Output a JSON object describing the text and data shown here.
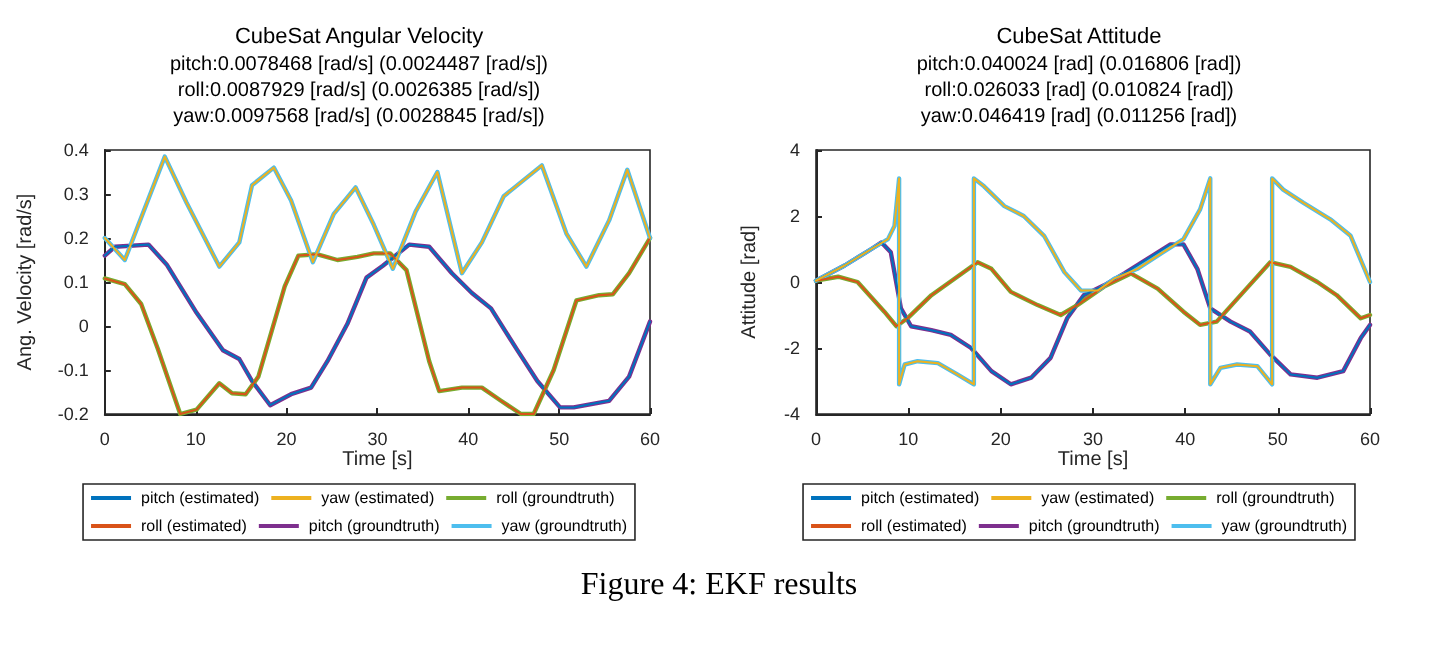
{
  "chart_data": [
    {
      "type": "line",
      "title": "CubeSat Angular Velocity",
      "subtitle": "pitch:0.0078468 [rad/s] (0.0024487 [rad/s])\nroll:0.0087929 [rad/s] (0.0026385 [rad/s])\nyaw:0.0097568 [rad/s] (0.0028845 [rad/s])",
      "xlabel": "Time [s]",
      "ylabel": "Ang. Velocity [rad/s]",
      "xlim": [
        0,
        60
      ],
      "ylim": [
        -0.2,
        0.4
      ],
      "xticks": [
        0,
        10,
        20,
        30,
        40,
        50,
        60
      ],
      "yticks": [
        -0.2,
        -0.1,
        0,
        0.1,
        0.2,
        0.3,
        0.4
      ],
      "legend": "bottom",
      "marker": "none",
      "annotations": [
        "Figure 4: EKF results"
      ],
      "series": [
        {
          "name": "pitch (estimated)",
          "color": "#0072bd",
          "x": [
            0,
            1.1,
            4.8,
            6.8,
            10.1,
            13,
            14.8,
            16.2,
            18.2,
            20.5,
            22.7,
            24.5,
            26.7,
            28.8,
            30.6,
            33.5,
            35.7,
            38.2,
            40.4,
            42.5,
            45.4,
            47.6,
            50.1,
            51.6,
            53.4,
            55.5,
            57.7,
            60
          ],
          "values": [
            0.16,
            0.18,
            0.185,
            0.14,
            0.03,
            -0.055,
            -0.075,
            -0.125,
            -0.18,
            -0.155,
            -0.14,
            -0.08,
            0.005,
            0.11,
            0.137,
            0.185,
            0.18,
            0.12,
            0.075,
            0.04,
            -0.055,
            -0.125,
            -0.185,
            -0.185,
            -0.178,
            -0.17,
            -0.115,
            0.01
          ]
        },
        {
          "name": "roll (estimated)",
          "color": "#d95319",
          "x": [
            0,
            2.2,
            4,
            5.8,
            8.3,
            10.1,
            12.6,
            14,
            15.5,
            16.9,
            19.8,
            21.3,
            23.4,
            25.6,
            27.8,
            29.6,
            31.4,
            33.2,
            35.7,
            36.8,
            39.3,
            41.5,
            43.6,
            45.8,
            47.2,
            49.4,
            51.9,
            54.4,
            55.9,
            57.7,
            60
          ],
          "values": [
            0.108,
            0.095,
            0.05,
            -0.05,
            -0.2,
            -0.19,
            -0.13,
            -0.153,
            -0.155,
            -0.115,
            0.09,
            0.16,
            0.163,
            0.15,
            0.157,
            0.165,
            0.165,
            0.127,
            -0.08,
            -0.148,
            -0.14,
            -0.14,
            -0.17,
            -0.2,
            -0.2,
            -0.1,
            0.058,
            0.07,
            0.072,
            0.12,
            0.2
          ]
        },
        {
          "name": "yaw (estimated)",
          "color": "#edb120",
          "x": [
            0,
            2.2,
            6.6,
            9,
            12.6,
            14.8,
            16.2,
            18.6,
            20.5,
            22.9,
            25.2,
            27.6,
            29.6,
            31.7,
            34.2,
            36.6,
            39.3,
            41.5,
            43.9,
            48.1,
            50.8,
            53,
            55.5,
            57.5,
            60
          ],
          "values": [
            0.2,
            0.15,
            0.385,
            0.28,
            0.135,
            0.19,
            0.32,
            0.36,
            0.285,
            0.145,
            0.255,
            0.315,
            0.23,
            0.13,
            0.26,
            0.35,
            0.12,
            0.19,
            0.295,
            0.365,
            0.21,
            0.135,
            0.24,
            0.355,
            0.2
          ]
        },
        {
          "name": "pitch (groundtruth)",
          "color": "#7e2f8e",
          "x": [
            0,
            1.1,
            4.8,
            6.8,
            10.1,
            13,
            14.8,
            16.2,
            18.2,
            20.5,
            22.7,
            24.5,
            26.7,
            28.8,
            30.6,
            33.5,
            35.7,
            38.2,
            40.4,
            42.5,
            45.4,
            47.6,
            50.1,
            51.6,
            53.4,
            55.5,
            57.7,
            60
          ],
          "values": [
            0.16,
            0.18,
            0.185,
            0.14,
            0.03,
            -0.055,
            -0.075,
            -0.125,
            -0.18,
            -0.155,
            -0.14,
            -0.08,
            0.005,
            0.11,
            0.137,
            0.185,
            0.18,
            0.12,
            0.075,
            0.04,
            -0.055,
            -0.125,
            -0.185,
            -0.185,
            -0.178,
            -0.17,
            -0.115,
            0.01
          ]
        },
        {
          "name": "roll (groundtruth)",
          "color": "#77ac30",
          "x": [
            0,
            2.2,
            4,
            5.8,
            8.3,
            10.1,
            12.6,
            14,
            15.5,
            16.9,
            19.8,
            21.3,
            23.4,
            25.6,
            27.8,
            29.6,
            31.4,
            33.2,
            35.7,
            36.8,
            39.3,
            41.5,
            43.6,
            45.8,
            47.2,
            49.4,
            51.9,
            54.4,
            55.9,
            57.7,
            60
          ],
          "values": [
            0.108,
            0.095,
            0.05,
            -0.05,
            -0.2,
            -0.19,
            -0.13,
            -0.153,
            -0.155,
            -0.115,
            0.09,
            0.16,
            0.163,
            0.15,
            0.157,
            0.165,
            0.165,
            0.127,
            -0.08,
            -0.148,
            -0.14,
            -0.14,
            -0.17,
            -0.2,
            -0.2,
            -0.1,
            0.058,
            0.07,
            0.072,
            0.12,
            0.2
          ]
        },
        {
          "name": "yaw (groundtruth)",
          "color": "#4dbeee",
          "x": [
            0,
            2.2,
            6.6,
            9,
            12.6,
            14.8,
            16.2,
            18.6,
            20.5,
            22.9,
            25.2,
            27.6,
            29.6,
            31.7,
            34.2,
            36.6,
            39.3,
            41.5,
            43.9,
            48.1,
            50.8,
            53,
            55.5,
            57.5,
            60
          ],
          "values": [
            0.2,
            0.15,
            0.385,
            0.28,
            0.135,
            0.19,
            0.32,
            0.36,
            0.285,
            0.145,
            0.255,
            0.315,
            0.23,
            0.13,
            0.26,
            0.35,
            0.12,
            0.19,
            0.295,
            0.365,
            0.21,
            0.135,
            0.24,
            0.355,
            0.2
          ]
        }
      ]
    },
    {
      "type": "line",
      "title": "CubeSat Attitude",
      "subtitle": "pitch:0.040024 [rad] (0.016806 [rad])\nroll:0.026033 [rad] (0.010824 [rad])\nyaw:0.046419 [rad] (0.011256 [rad])",
      "xlabel": "Time [s]",
      "ylabel": "Attitude [rad]",
      "xlim": [
        0,
        60
      ],
      "ylim": [
        -4,
        4
      ],
      "xticks": [
        0,
        10,
        20,
        30,
        40,
        50,
        60
      ],
      "yticks": [
        -4,
        -2,
        0,
        2,
        4
      ],
      "legend": "bottom",
      "marker": "none",
      "series": [
        {
          "name": "pitch (estimated)",
          "color": "#0072bd",
          "x": [
            0,
            3.1,
            6,
            7.1,
            8.1,
            9.2,
            10.3,
            12.5,
            14.6,
            16.8,
            19,
            21.1,
            23.3,
            25.4,
            27.2,
            29,
            31.2,
            33.4,
            35.9,
            38.4,
            39.8,
            41.3,
            42.7,
            44.9,
            47,
            49.2,
            51.4,
            54.3,
            57.1,
            59,
            60
          ],
          "values": [
            0.04,
            0.5,
            1,
            1.2,
            0.9,
            -0.8,
            -1.34,
            -1.46,
            -1.6,
            -2,
            -2.7,
            -3.1,
            -2.9,
            -2.3,
            -1.1,
            -0.4,
            -0.1,
            0.26,
            0.7,
            1.14,
            1.14,
            0.4,
            -0.8,
            -1.2,
            -1.5,
            -2.2,
            -2.8,
            -2.9,
            -2.7,
            -1.7,
            -1.3
          ]
        },
        {
          "name": "roll (estimated)",
          "color": "#d95319",
          "x": [
            0,
            2.4,
            4.5,
            7.4,
            8.7,
            9.9,
            12.5,
            15,
            17.5,
            19,
            21.1,
            24,
            26.5,
            28.3,
            31.2,
            34.1,
            37,
            39.8,
            41.6,
            43.4,
            46.3,
            49.2,
            51.4,
            54.3,
            56.4,
            59,
            60
          ],
          "values": [
            0.04,
            0.16,
            0,
            -0.9,
            -1.34,
            -1.1,
            -0.4,
            0.1,
            0.6,
            0.4,
            -0.3,
            -0.7,
            -1,
            -0.7,
            -0.14,
            0.26,
            -0.2,
            -0.9,
            -1.3,
            -1.2,
            -0.3,
            0.6,
            0.46,
            0,
            -0.4,
            -1.1,
            -1
          ]
        },
        {
          "name": "yaw (estimated)",
          "color": "#edb120",
          "x": [
            0,
            3.1,
            6,
            7.8,
            8.5,
            9,
            9,
            9.6,
            11,
            13.2,
            15.3,
            17.1,
            17.1,
            18.2,
            20.4,
            22.5,
            24.7,
            26.9,
            28.7,
            30.5,
            32.3,
            34.8,
            37,
            39.8,
            41.6,
            42.7,
            42.7,
            43.8,
            45.6,
            47.8,
            49.4,
            49.4,
            50.6,
            52.8,
            55.7,
            57.9,
            60
          ],
          "values": [
            0.04,
            0.5,
            1,
            1.3,
            1.7,
            3.14,
            -3.1,
            -2.5,
            -2.4,
            -2.46,
            -2.8,
            -3.1,
            3.14,
            2.9,
            2.3,
            2,
            1.4,
            0.3,
            -0.26,
            -0.26,
            0.1,
            0.4,
            0.8,
            1.3,
            2.2,
            3.14,
            -3.1,
            -2.6,
            -2.5,
            -2.55,
            -3.1,
            3.14,
            2.8,
            2.4,
            1.9,
            1.4,
            0
          ]
        },
        {
          "name": "pitch (groundtruth)",
          "color": "#7e2f8e",
          "x": [
            0,
            3.1,
            6,
            7.1,
            8.1,
            9.2,
            10.3,
            12.5,
            14.6,
            16.8,
            19,
            21.1,
            23.3,
            25.4,
            27.2,
            29,
            31.2,
            33.4,
            35.9,
            38.4,
            39.8,
            41.3,
            42.7,
            44.9,
            47,
            49.2,
            51.4,
            54.3,
            57.1,
            59,
            60
          ],
          "values": [
            0.04,
            0.5,
            1,
            1.2,
            0.9,
            -0.8,
            -1.34,
            -1.46,
            -1.6,
            -2,
            -2.7,
            -3.1,
            -2.9,
            -2.3,
            -1.1,
            -0.4,
            -0.1,
            0.26,
            0.7,
            1.14,
            1.14,
            0.4,
            -0.8,
            -1.2,
            -1.5,
            -2.2,
            -2.8,
            -2.9,
            -2.7,
            -1.7,
            -1.3
          ]
        },
        {
          "name": "roll (groundtruth)",
          "color": "#77ac30",
          "x": [
            0,
            2.4,
            4.5,
            7.4,
            8.7,
            9.9,
            12.5,
            15,
            17.5,
            19,
            21.1,
            24,
            26.5,
            28.3,
            31.2,
            34.1,
            37,
            39.8,
            41.6,
            43.4,
            46.3,
            49.2,
            51.4,
            54.3,
            56.4,
            59,
            60
          ],
          "values": [
            0.04,
            0.16,
            0,
            -0.9,
            -1.34,
            -1.1,
            -0.4,
            0.1,
            0.6,
            0.4,
            -0.3,
            -0.7,
            -1,
            -0.7,
            -0.14,
            0.26,
            -0.2,
            -0.9,
            -1.3,
            -1.2,
            -0.3,
            0.6,
            0.46,
            0,
            -0.4,
            -1.1,
            -1
          ]
        },
        {
          "name": "yaw (groundtruth)",
          "color": "#4dbeee",
          "x": [
            0,
            3.1,
            6,
            7.8,
            8.5,
            9,
            9,
            9.6,
            11,
            13.2,
            15.3,
            17.1,
            17.1,
            18.2,
            20.4,
            22.5,
            24.7,
            26.9,
            28.7,
            30.5,
            32.3,
            34.8,
            37,
            39.8,
            41.6,
            42.7,
            42.7,
            43.8,
            45.6,
            47.8,
            49.4,
            49.4,
            50.6,
            52.8,
            55.7,
            57.9,
            60
          ],
          "values": [
            0.04,
            0.5,
            1,
            1.3,
            1.7,
            3.14,
            -3.1,
            -2.5,
            -2.4,
            -2.46,
            -2.8,
            -3.1,
            3.14,
            2.9,
            2.3,
            2,
            1.4,
            0.3,
            -0.26,
            -0.26,
            0.1,
            0.4,
            0.8,
            1.3,
            2.2,
            3.14,
            -3.1,
            -2.6,
            -2.5,
            -2.55,
            -3.1,
            3.14,
            2.8,
            2.4,
            1.9,
            1.4,
            0
          ]
        }
      ]
    }
  ]
}
